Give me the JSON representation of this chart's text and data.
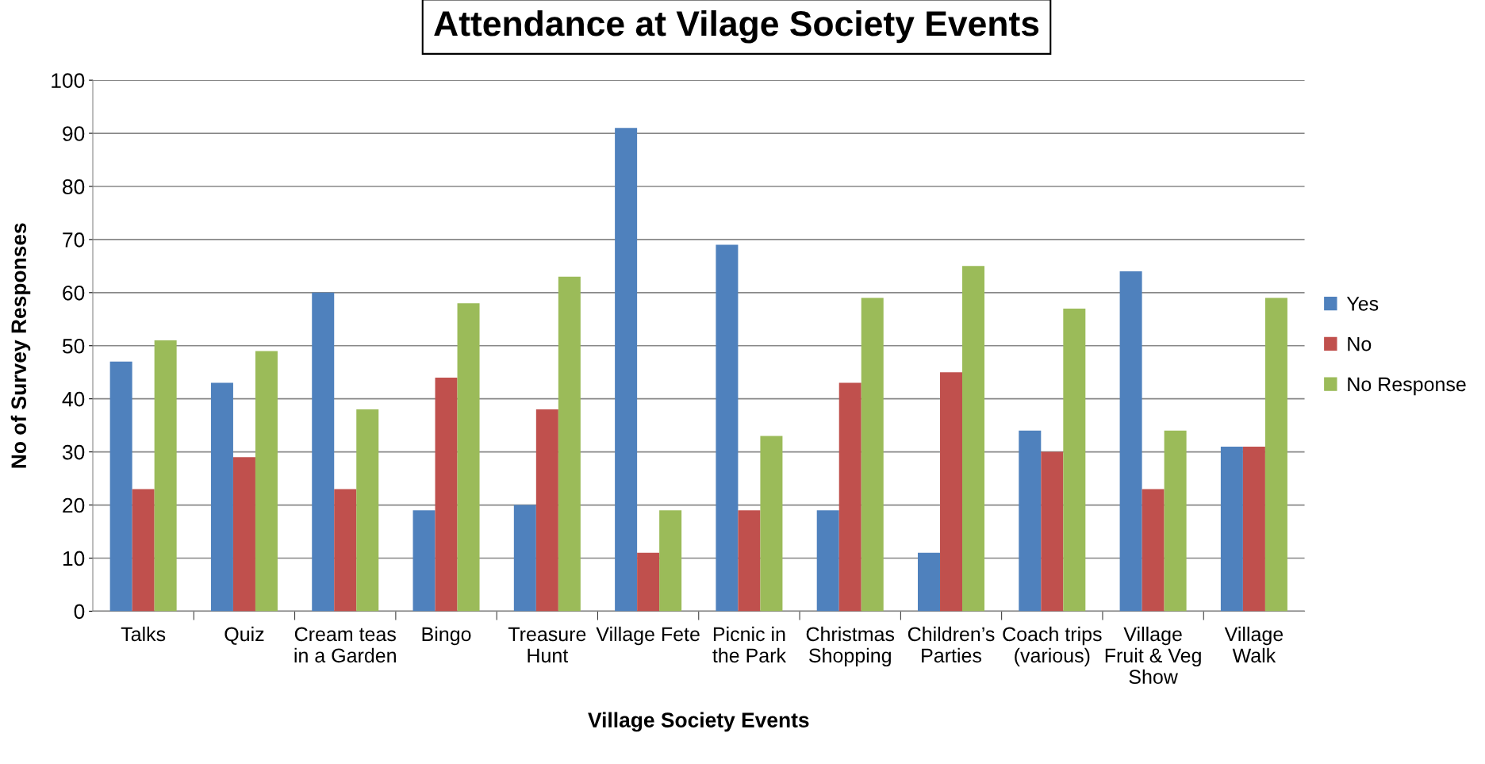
{
  "chart_data": {
    "type": "bar",
    "title": "Attendance at Vilage Society Events",
    "xlabel": "Village Society Events",
    "ylabel": "No of Survey Responses",
    "categories": [
      "Talks",
      "Quiz",
      "Cream teas\nin a Garden",
      "Bingo",
      "Treasure\nHunt",
      "Village Fete",
      "Picnic in\nthe Park",
      "Christmas\nShopping",
      "Children’s\nParties",
      "Coach trips\n(various)",
      "Village\nFruit & Veg\nShow",
      "Village\nWalk"
    ],
    "series": [
      {
        "name": "Yes",
        "color": "#4f81bd",
        "values": [
          47,
          43,
          60,
          19,
          20,
          91,
          69,
          19,
          11,
          34,
          64,
          31
        ]
      },
      {
        "name": "No",
        "color": "#c0504d",
        "values": [
          23,
          29,
          23,
          44,
          38,
          11,
          19,
          43,
          45,
          30,
          23,
          31
        ]
      },
      {
        "name": "No Response",
        "color": "#9bbb59",
        "values": [
          51,
          49,
          38,
          58,
          63,
          19,
          33,
          59,
          65,
          57,
          34,
          59
        ]
      }
    ],
    "ylim": [
      0,
      100
    ],
    "yticks": [
      0,
      10,
      20,
      30,
      40,
      50,
      60,
      70,
      80,
      90,
      100
    ],
    "grid": "y",
    "legend": "right"
  }
}
